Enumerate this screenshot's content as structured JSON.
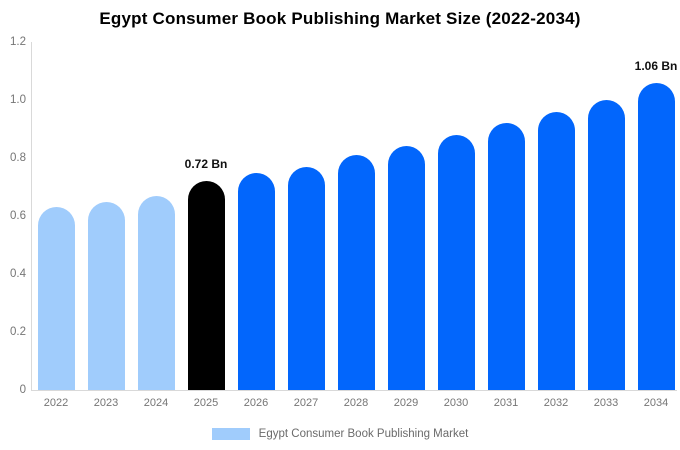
{
  "title": "Egypt Consumer Book Publishing Market Size (2022-2034)",
  "chart_data": {
    "type": "bar",
    "title": "Egypt Consumer Book Publishing Market Size (2022-2034)",
    "categories": [
      "2022",
      "2023",
      "2024",
      "2025",
      "2026",
      "2027",
      "2028",
      "2029",
      "2030",
      "2031",
      "2032",
      "2033",
      "2034"
    ],
    "values": [
      0.63,
      0.65,
      0.67,
      0.72,
      0.75,
      0.77,
      0.81,
      0.84,
      0.88,
      0.92,
      0.96,
      1.0,
      1.06
    ],
    "unit": "Bn",
    "xlabel": "",
    "ylabel": "",
    "ylim": [
      0,
      1.2
    ],
    "ytick_labels": [
      "0",
      "0.2",
      "0.4",
      "0.6",
      "0.8",
      "1.0",
      "1.2"
    ],
    "grid": false,
    "bar_colors": [
      "#A0CCFC",
      "#A0CCFC",
      "#A0CCFC",
      "#000000",
      "#0266FC",
      "#0266FC",
      "#0266FC",
      "#0266FC",
      "#0266FC",
      "#0266FC",
      "#0266FC",
      "#0266FC",
      "#0266FC"
    ],
    "annotations": [
      {
        "category": "2025",
        "text": "0.72 Bn"
      },
      {
        "category": "2034",
        "text": "1.06 Bn"
      }
    ],
    "legend_position": "bottom",
    "legend": [
      {
        "label": "Egypt Consumer Book Publishing Market",
        "color": "#A0CCFC"
      }
    ],
    "colors": {
      "highlight_bar": "#000000",
      "forecast_bar": "#0266FC",
      "history_bar": "#A0CCFC",
      "axis_line": "#d9d9d9",
      "tick_text": "#757575",
      "legend_text": "#6b6b6b"
    }
  }
}
